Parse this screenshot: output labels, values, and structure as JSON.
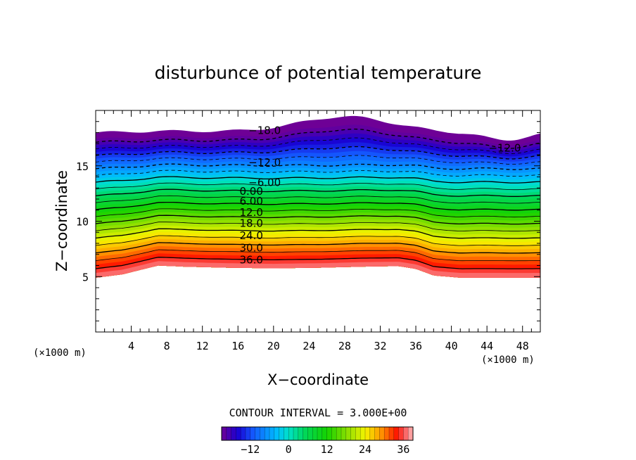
{
  "chart_data": {
    "type": "contour",
    "title": "disturbunce of potential temperature",
    "xlabel": "X−coordinate",
    "ylabel": "Z−coordinate",
    "x_unit_label": "(×1000 m)",
    "y_unit_label": "(×1000 m)",
    "xlim": [
      0,
      50
    ],
    "ylim": [
      0,
      20
    ],
    "x_ticks": [
      "4",
      "8",
      "12",
      "16",
      "20",
      "24",
      "28",
      "32",
      "36",
      "40",
      "44",
      "48"
    ],
    "y_ticks": [
      "5",
      "10",
      "15"
    ],
    "contour_interval_text": "CONTOUR INTERVAL = 3.000E+00",
    "contour_labels": [
      {
        "text": "−18.0",
        "x": 19,
        "z": 18.2
      },
      {
        "text": "−12.0",
        "x": 19,
        "z": 15.3
      },
      {
        "text": "−12.0",
        "x": 46,
        "z": 16.6
      },
      {
        "text": "−6.00",
        "x": 19,
        "z": 13.5
      },
      {
        "text": "0.00",
        "x": 17.5,
        "z": 12.7
      },
      {
        "text": "6.00",
        "x": 17.5,
        "z": 11.8
      },
      {
        "text": "12.0",
        "x": 17.5,
        "z": 10.8
      },
      {
        "text": "18.0",
        "x": 17.5,
        "z": 9.8
      },
      {
        "text": "24.0",
        "x": 17.5,
        "z": 8.7
      },
      {
        "text": "30.0",
        "x": 17.5,
        "z": 7.6
      },
      {
        "text": "36.0",
        "x": 17.5,
        "z": 6.5
      }
    ],
    "value_range": [
      -21,
      39
    ],
    "colorbar": {
      "min": -21,
      "max": 39,
      "tick_labels": [
        "−12",
        "0",
        "12",
        "24",
        "36"
      ],
      "tick_values": [
        -12,
        0,
        12,
        24,
        36
      ]
    },
    "data_domain": {
      "bottom_boundary_z": [
        {
          "x": 0,
          "z": 4.9
        },
        {
          "x": 3,
          "z": 5.2
        },
        {
          "x": 5,
          "z": 5.6
        },
        {
          "x": 7,
          "z": 6.0
        },
        {
          "x": 10,
          "z": 5.9
        },
        {
          "x": 15,
          "z": 5.8
        },
        {
          "x": 20,
          "z": 5.75
        },
        {
          "x": 25,
          "z": 5.8
        },
        {
          "x": 30,
          "z": 5.9
        },
        {
          "x": 34,
          "z": 5.95
        },
        {
          "x": 36,
          "z": 5.7
        },
        {
          "x": 38,
          "z": 5.1
        },
        {
          "x": 41,
          "z": 4.9
        },
        {
          "x": 50,
          "z": 4.9
        }
      ],
      "top_z": 19.8
    }
  }
}
